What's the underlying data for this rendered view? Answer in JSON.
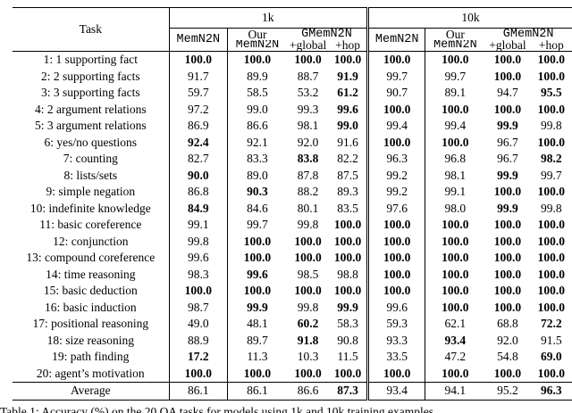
{
  "header": {
    "task": "Task",
    "group_1k": "1k",
    "group_10k": "10k",
    "col_memn2n": "MemN2N",
    "col_our": "Our",
    "col_gmemn2n": "GMemN2N",
    "col_our_memn2n": "MemN2N",
    "col_global": "+global",
    "col_hop": "+hop"
  },
  "table": {
    "rows": [
      {
        "task": "1: 1 supporting fact",
        "values": [
          "100.0",
          "100.0",
          "100.0",
          "100.0",
          "100.0",
          "100.0",
          "100.0",
          "100.0"
        ],
        "bold": [
          true,
          true,
          true,
          true,
          true,
          true,
          true,
          true
        ]
      },
      {
        "task": "2: 2 supporting facts",
        "values": [
          "91.7",
          "89.9",
          "88.7",
          "91.9",
          "99.7",
          "99.7",
          "100.0",
          "100.0"
        ],
        "bold": [
          false,
          false,
          false,
          true,
          false,
          false,
          true,
          true
        ]
      },
      {
        "task": "3: 3 supporting facts",
        "values": [
          "59.7",
          "58.5",
          "53.2",
          "61.2",
          "90.7",
          "89.1",
          "94.7",
          "95.5"
        ],
        "bold": [
          false,
          false,
          false,
          true,
          false,
          false,
          false,
          true
        ]
      },
      {
        "task": "4: 2 argument relations",
        "values": [
          "97.2",
          "99.0",
          "99.3",
          "99.6",
          "100.0",
          "100.0",
          "100.0",
          "100.0"
        ],
        "bold": [
          false,
          false,
          false,
          true,
          true,
          true,
          true,
          true
        ]
      },
      {
        "task": "5: 3 argument relations",
        "values": [
          "86.9",
          "86.6",
          "98.1",
          "99.0",
          "99.4",
          "99.4",
          "99.9",
          "99.8"
        ],
        "bold": [
          false,
          false,
          false,
          true,
          false,
          false,
          true,
          false
        ]
      },
      {
        "task": "6: yes/no questions",
        "values": [
          "92.4",
          "92.1",
          "92.0",
          "91.6",
          "100.0",
          "100.0",
          "96.7",
          "100.0"
        ],
        "bold": [
          true,
          false,
          false,
          false,
          true,
          true,
          false,
          true
        ]
      },
      {
        "task": "7: counting",
        "values": [
          "82.7",
          "83.3",
          "83.8",
          "82.2",
          "96.3",
          "96.8",
          "96.7",
          "98.2"
        ],
        "bold": [
          false,
          false,
          true,
          false,
          false,
          false,
          false,
          true
        ]
      },
      {
        "task": "8: lists/sets",
        "values": [
          "90.0",
          "89.0",
          "87.8",
          "87.5",
          "99.2",
          "98.1",
          "99.9",
          "99.7"
        ],
        "bold": [
          true,
          false,
          false,
          false,
          false,
          false,
          true,
          false
        ]
      },
      {
        "task": "9: simple negation",
        "values": [
          "86.8",
          "90.3",
          "88.2",
          "89.3",
          "99.2",
          "99.1",
          "100.0",
          "100.0"
        ],
        "bold": [
          false,
          true,
          false,
          false,
          false,
          false,
          true,
          true
        ]
      },
      {
        "task": "10: indefinite knowledge",
        "values": [
          "84.9",
          "84.6",
          "80.1",
          "83.5",
          "97.6",
          "98.0",
          "99.9",
          "99.8"
        ],
        "bold": [
          true,
          false,
          false,
          false,
          false,
          false,
          true,
          false
        ]
      },
      {
        "task": "11: basic coreference",
        "values": [
          "99.1",
          "99.7",
          "99.8",
          "100.0",
          "100.0",
          "100.0",
          "100.0",
          "100.0"
        ],
        "bold": [
          false,
          false,
          false,
          true,
          true,
          true,
          true,
          true
        ]
      },
      {
        "task": "12: conjunction",
        "values": [
          "99.8",
          "100.0",
          "100.0",
          "100.0",
          "100.0",
          "100.0",
          "100.0",
          "100.0"
        ],
        "bold": [
          false,
          true,
          true,
          true,
          true,
          true,
          true,
          true
        ]
      },
      {
        "task": "13: compound coreference",
        "values": [
          "99.6",
          "100.0",
          "100.0",
          "100.0",
          "100.0",
          "100.0",
          "100.0",
          "100.0"
        ],
        "bold": [
          false,
          true,
          true,
          true,
          true,
          true,
          true,
          true
        ]
      },
      {
        "task": "14: time reasoning",
        "values": [
          "98.3",
          "99.6",
          "98.5",
          "98.8",
          "100.0",
          "100.0",
          "100.0",
          "100.0"
        ],
        "bold": [
          false,
          true,
          false,
          false,
          true,
          true,
          true,
          true
        ]
      },
      {
        "task": "15: basic deduction",
        "values": [
          "100.0",
          "100.0",
          "100.0",
          "100.0",
          "100.0",
          "100.0",
          "100.0",
          "100.0"
        ],
        "bold": [
          true,
          true,
          true,
          true,
          true,
          true,
          true,
          true
        ]
      },
      {
        "task": "16: basic induction",
        "values": [
          "98.7",
          "99.9",
          "99.8",
          "99.9",
          "99.6",
          "100.0",
          "100.0",
          "100.0"
        ],
        "bold": [
          false,
          true,
          false,
          true,
          false,
          true,
          true,
          true
        ]
      },
      {
        "task": "17: positional reasoning",
        "values": [
          "49.0",
          "48.1",
          "60.2",
          "58.3",
          "59.3",
          "62.1",
          "68.8",
          "72.2"
        ],
        "bold": [
          false,
          false,
          true,
          false,
          false,
          false,
          false,
          true
        ]
      },
      {
        "task": "18: size reasoning",
        "values": [
          "88.9",
          "89.7",
          "91.8",
          "90.8",
          "93.3",
          "93.4",
          "92.0",
          "91.5"
        ],
        "bold": [
          false,
          false,
          true,
          false,
          false,
          true,
          false,
          false
        ]
      },
      {
        "task": "19: path finding",
        "values": [
          "17.2",
          "11.3",
          "10.3",
          "11.5",
          "33.5",
          "47.2",
          "54.8",
          "69.0"
        ],
        "bold": [
          true,
          false,
          false,
          false,
          false,
          false,
          false,
          true
        ]
      },
      {
        "task": "20: agent’s motivation",
        "values": [
          "100.0",
          "100.0",
          "100.0",
          "100.0",
          "100.0",
          "100.0",
          "100.0",
          "100.0"
        ],
        "bold": [
          true,
          true,
          true,
          true,
          true,
          true,
          true,
          true
        ]
      }
    ],
    "average": {
      "task": "Average",
      "values": [
        "86.1",
        "86.1",
        "86.6",
        "87.3",
        "93.4",
        "94.1",
        "95.2",
        "96.3"
      ],
      "bold": [
        false,
        false,
        false,
        true,
        false,
        false,
        false,
        true
      ]
    }
  },
  "caption": "Table 1: Accuracy (%) on the 20 QA tasks for models using 1k and 10k training examples."
}
